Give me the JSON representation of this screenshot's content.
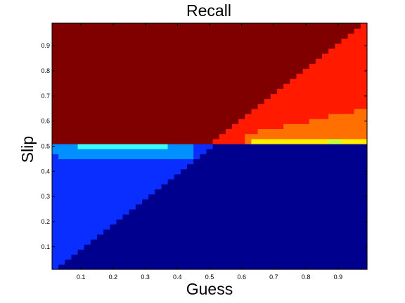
{
  "chart_data": {
    "type": "heatmap",
    "title": "Recall",
    "xlabel": "Guess",
    "ylabel": "Slip",
    "xlim": [
      0.01,
      0.99
    ],
    "ylim": [
      0.01,
      0.99
    ],
    "xticks": [
      "0.1",
      "0.2",
      "0.3",
      "0.4",
      "0.5",
      "0.6",
      "0.7",
      "0.8",
      "0.9"
    ],
    "yticks": [
      "0.1",
      "0.2",
      "0.3",
      "0.4",
      "0.5",
      "0.6",
      "0.7",
      "0.8",
      "0.9"
    ],
    "grid": false,
    "legend": "none",
    "colormap": "jet",
    "color_stops": {
      "dark_red": "#800000",
      "red": "#ff1a00",
      "orange": "#ff7000",
      "yellow": "#ffee00",
      "yellow_green": "#c4ff3a",
      "cyan": "#3affff",
      "light_blue": "#0090ff",
      "blue": "#0a2eff",
      "dark_blue": "#00008f"
    },
    "regions": [
      {
        "color": "dark_red",
        "where": "slip > 0.5 and slip > guess + 0.01"
      },
      {
        "color": "red",
        "where": "slip > 0.5 and slip < guess; upper-right triangle"
      },
      {
        "color": "orange",
        "where": "slip 0.51-0.65, guess 0.61-0.99, thin band near slip 0.5"
      },
      {
        "color": "yellow",
        "where": "slip 0.51-0.53, guess 0.63-0.99"
      },
      {
        "color": "dark_blue",
        "where": "slip < 0.5 and slip < guess"
      },
      {
        "color": "blue",
        "where": "slip < 0.5 and slip > guess; lower-left triangle"
      },
      {
        "color": "light_blue",
        "where": "slip 0.44-0.5, guess 0.01-0.45"
      },
      {
        "color": "cyan",
        "where": "slip 0.49-0.5, guess 0.09-0.37"
      }
    ]
  }
}
